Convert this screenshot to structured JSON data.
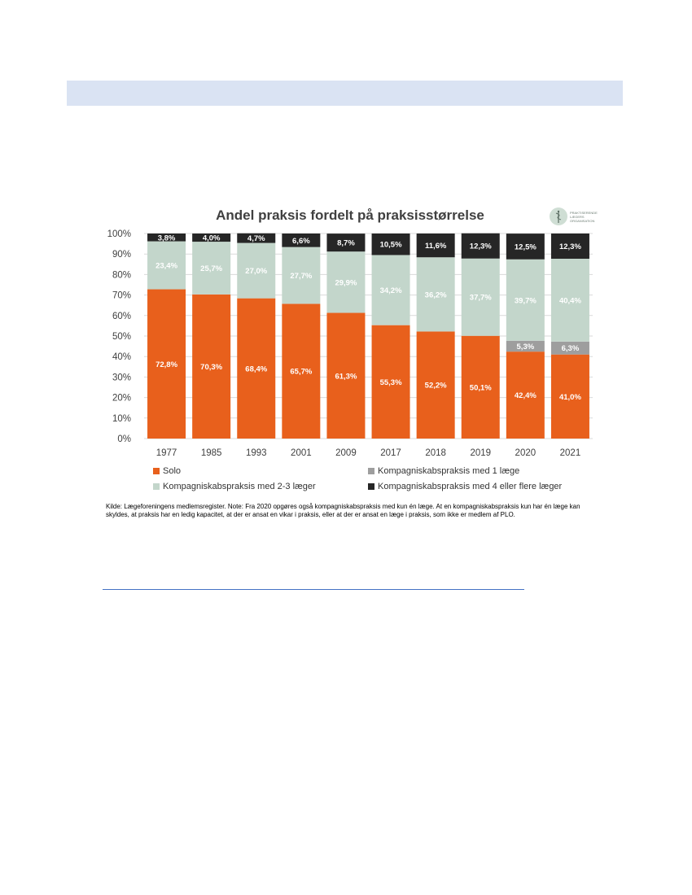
{
  "page": {
    "source_note": "Kilde: Lægeforeningens medlemsregister.  Note: Fra 2020 opgøres også kompagniskabspraksis med kun én læge. At en kompagniskabspraksis kun har én læge kan skyldes, at praksis har en ledig kapacitet, at der er ansat en vikar i praksis, eller at der er ansat en læge i praksis, som ikke er medlem af PLO.",
    "logo": {
      "text_lines": [
        "PRAKTISERENDE",
        "LÆGERS",
        "ORGANISATION"
      ],
      "icon": "caduceus-icon"
    }
  },
  "colors": {
    "solo": "#e8601c",
    "komp_1": "#9e9e9e",
    "komp_2_3": "#c3d6cb",
    "komp_4plus": "#262626",
    "header_band": "#dae3f3",
    "rule": "#4472c4"
  },
  "chart_data": {
    "type": "bar",
    "stacked": true,
    "title": "Andel praksis fordelt på praksisstørrelse",
    "categories": [
      "1977",
      "1985",
      "1993",
      "2001",
      "2009",
      "2017",
      "2018",
      "2019",
      "2020",
      "2021"
    ],
    "series": [
      {
        "name": "Solo",
        "key": "solo",
        "values": [
          72.8,
          70.3,
          68.4,
          65.7,
          61.3,
          55.3,
          52.2,
          50.1,
          42.4,
          41.0
        ],
        "labels": [
          "72,8%",
          "70,3%",
          "68,4%",
          "65,7%",
          "61,3%",
          "55,3%",
          "52,2%",
          "50,1%",
          "42,4%",
          "41,0%"
        ]
      },
      {
        "name": "Kompagniskabspraksis med 1 læge",
        "key": "komp_1",
        "values": [
          0,
          0,
          0,
          0,
          0,
          0,
          0,
          0,
          5.3,
          6.3
        ],
        "labels": [
          "",
          "",
          "",
          "",
          "",
          "",
          "",
          "",
          "5,3%",
          "6,3%"
        ]
      },
      {
        "name": "Kompagniskabspraksis med 2-3 læger",
        "key": "komp_2_3",
        "values": [
          23.4,
          25.7,
          27.0,
          27.7,
          29.9,
          34.2,
          36.2,
          37.7,
          39.7,
          40.4
        ],
        "labels": [
          "23,4%",
          "25,7%",
          "27,0%",
          "27,7%",
          "29,9%",
          "34,2%",
          "36,2%",
          "37,7%",
          "39,7%",
          "40,4%"
        ]
      },
      {
        "name": "Kompagniskabspraksis med 4 eller flere læger",
        "key": "komp_4plus",
        "values": [
          3.8,
          4.0,
          4.7,
          6.6,
          8.7,
          10.5,
          11.6,
          12.3,
          12.5,
          12.3
        ],
        "labels": [
          "3,8%",
          "4,0%",
          "4,7%",
          "6,6%",
          "8,7%",
          "10,5%",
          "11,6%",
          "12,3%",
          "12,5%",
          "12,3%"
        ]
      }
    ],
    "legend_order": [
      "solo",
      "komp_1",
      "komp_2_3",
      "komp_4plus"
    ],
    "ylim": [
      0,
      100
    ],
    "yticks": [
      "0%",
      "10%",
      "20%",
      "30%",
      "40%",
      "50%",
      "60%",
      "70%",
      "80%",
      "90%",
      "100%"
    ],
    "grid": true,
    "legend_position": "bottom"
  }
}
